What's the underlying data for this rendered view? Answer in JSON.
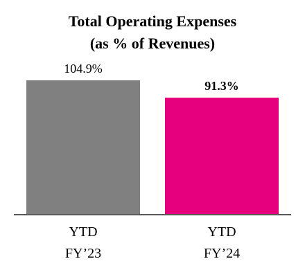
{
  "chart_data": {
    "type": "bar",
    "title_lines": [
      "Total Operating Expenses",
      "(as % of Revenues)"
    ],
    "categories": [
      [
        "YTD",
        "FY’23"
      ],
      [
        "YTD",
        "FY’24"
      ]
    ],
    "values": [
      104.9,
      91.3
    ],
    "data_labels": [
      "104.9%",
      "91.3%"
    ],
    "data_label_bold": [
      false,
      true
    ],
    "colors": [
      "#808080",
      "#E6007E"
    ],
    "ylim": [
      0,
      150
    ],
    "grid": false,
    "xlabel": "",
    "ylabel": ""
  }
}
